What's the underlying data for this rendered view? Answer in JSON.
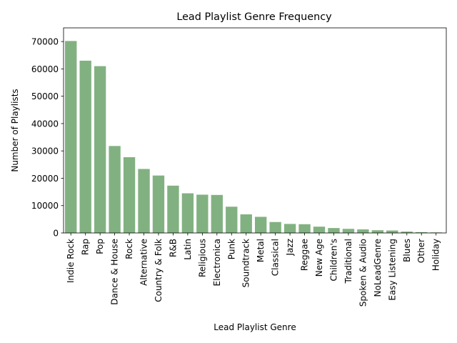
{
  "chart_data": {
    "type": "bar",
    "title": "Lead Playlist Genre Frequency",
    "xlabel": "Lead Playlist Genre",
    "ylabel": "Number of Playlists",
    "ylim": [
      0,
      75000
    ],
    "yticks": [
      0,
      10000,
      20000,
      30000,
      40000,
      50000,
      60000,
      70000
    ],
    "grid": false,
    "bar_color": "#82b181",
    "categories": [
      "Indie Rock",
      "Rap",
      "Pop",
      "Dance & House",
      "Rock",
      "Alternative",
      "Country & Folk",
      "R&B",
      "Latin",
      "Religious",
      "Electronica",
      "Punk",
      "Soundtrack",
      "Metal",
      "Classical",
      "Jazz",
      "Reggae",
      "New Age",
      "Children's",
      "Traditional",
      "Spoken & Audio",
      "NoLeadGenre",
      "Easy Listening",
      "Blues",
      "Other",
      "Holiday"
    ],
    "values": [
      70200,
      63000,
      61000,
      31800,
      27700,
      23400,
      21000,
      17300,
      14500,
      14000,
      13900,
      9600,
      6800,
      5900,
      4000,
      3300,
      3200,
      2300,
      1800,
      1500,
      1300,
      1000,
      900,
      500,
      300,
      200
    ]
  }
}
